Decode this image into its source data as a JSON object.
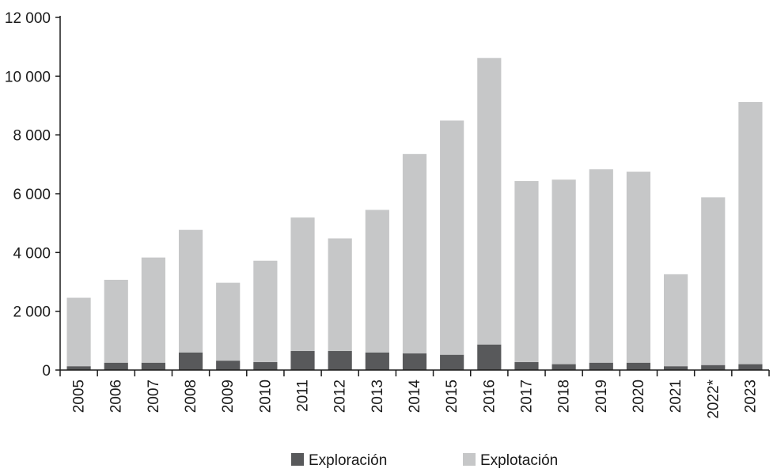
{
  "colors": {
    "exploracion": "#58595b",
    "explotacion": "#c6c7c8",
    "axis": "#1a1a1a"
  },
  "chart_data": {
    "type": "bar",
    "stacked": true,
    "categories": [
      "2005",
      "2006",
      "2007",
      "2008",
      "2009",
      "2010",
      "2011",
      "2012",
      "2013",
      "2014",
      "2015",
      "2016",
      "2017",
      "2018",
      "2019",
      "2020",
      "2021",
      "2022*",
      "2023"
    ],
    "series": [
      {
        "name": "Exploración",
        "color": "#58595b",
        "values": [
          130,
          250,
          250,
          600,
          320,
          270,
          650,
          650,
          600,
          570,
          520,
          870,
          270,
          200,
          250,
          250,
          130,
          170,
          200
        ]
      },
      {
        "name": "Explotación",
        "color": "#c6c7c8",
        "values": [
          2330,
          2820,
          3580,
          4170,
          2650,
          3450,
          4540,
          3830,
          4850,
          6780,
          7970,
          9750,
          6160,
          6280,
          6580,
          6500,
          3130,
          5710,
          8920
        ]
      }
    ],
    "ylim": [
      0,
      12000
    ],
    "yticks": [
      0,
      2000,
      4000,
      6000,
      8000,
      10000,
      12000
    ],
    "ytick_labels": [
      "0",
      "2 000",
      "4 000",
      "6 000",
      "8 000",
      "10 000",
      "12 000"
    ],
    "grid": false,
    "legend_position": "bottom-center",
    "title": "",
    "xlabel": "",
    "ylabel": ""
  }
}
